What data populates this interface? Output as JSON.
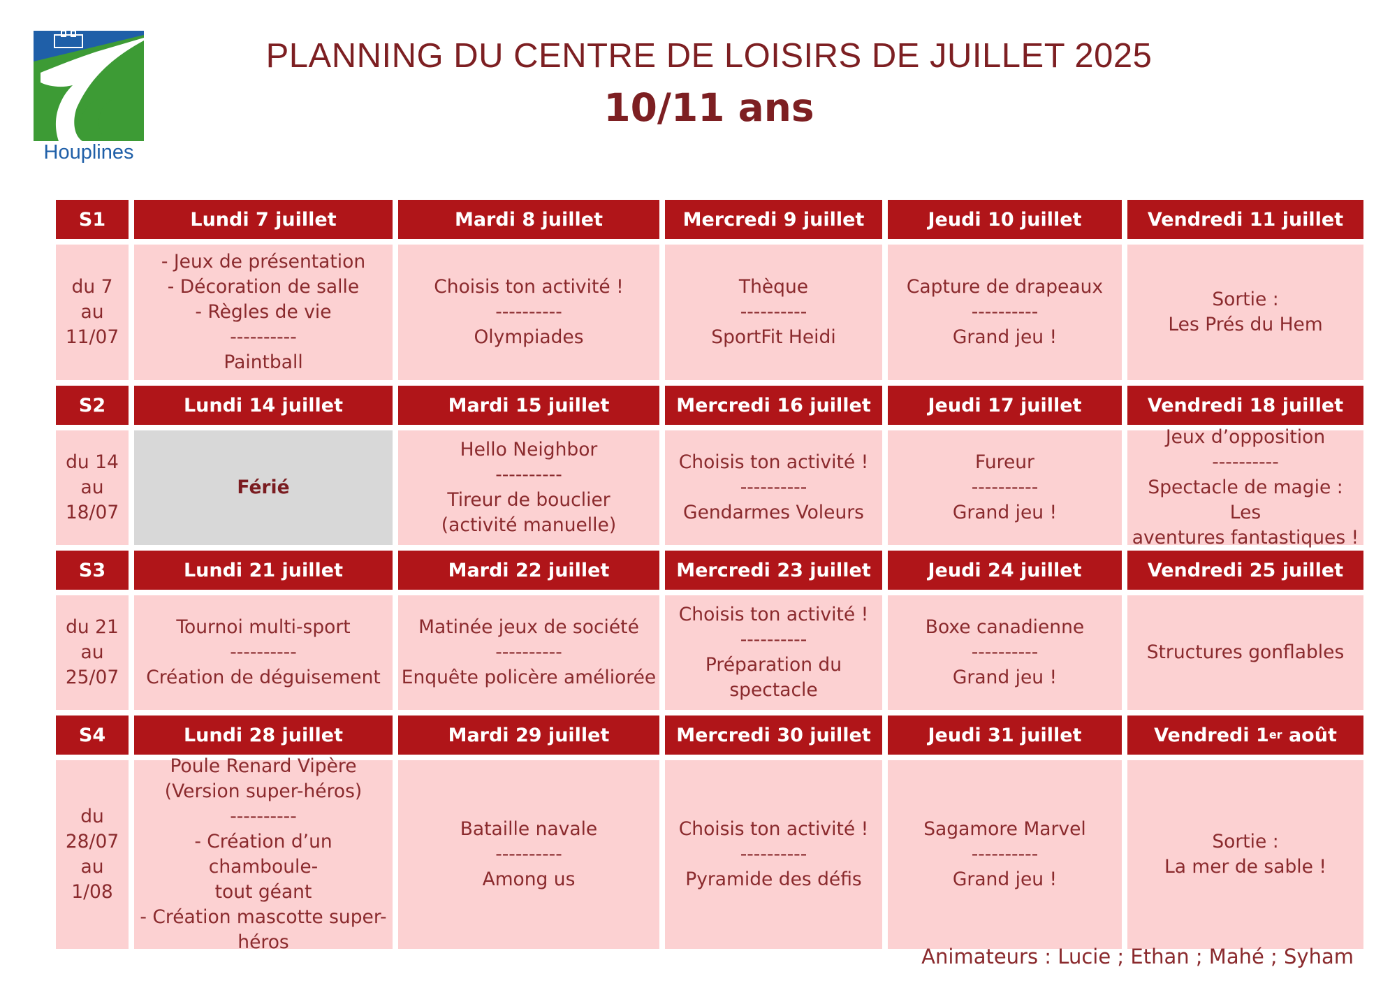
{
  "logo": {
    "name": "Houplines"
  },
  "header": {
    "title": "PLANNING DU CENTRE DE LOISIRS DE JUILLET 2025",
    "subtitle": "10/11 ans"
  },
  "weeks": [
    {
      "label": "S1",
      "range": [
        "du 7",
        "au",
        "11/07"
      ],
      "days": [
        {
          "name": "Lundi 7 juillet",
          "lines": [
            "- Jeux de présentation",
            "- Décoration de salle",
            "- Règles de vie",
            "----------",
            "Paintball"
          ]
        },
        {
          "name": "Mardi 8 juillet",
          "lines": [
            "Choisis ton activité !",
            "----------",
            "Olympiades"
          ]
        },
        {
          "name": "Mercredi 9 juillet",
          "lines": [
            "Thèque",
            "----------",
            "SportFit Heidi"
          ]
        },
        {
          "name": "Jeudi 10 juillet",
          "lines": [
            "Capture de drapeaux",
            "----------",
            "Grand jeu !"
          ]
        },
        {
          "name": "Vendredi 11 juillet",
          "lines": [
            "Sortie :",
            "Les Prés du Hem"
          ]
        }
      ]
    },
    {
      "label": "S2",
      "range": [
        "du 14",
        "au",
        "18/07"
      ],
      "days": [
        {
          "name": "Lundi 14 juillet",
          "lines": [
            "Férié"
          ]
        },
        {
          "name": "Mardi 15 juillet",
          "lines": [
            "Hello Neighbor",
            "----------",
            "Tireur de bouclier",
            "(activité manuelle)"
          ]
        },
        {
          "name": "Mercredi 16 juillet",
          "lines": [
            "Choisis ton activité !",
            "----------",
            "Gendarmes Voleurs"
          ]
        },
        {
          "name": "Jeudi 17 juillet",
          "lines": [
            "Fureur",
            "----------",
            "Grand jeu !"
          ]
        },
        {
          "name": "Vendredi 18 juillet",
          "lines": [
            "Jeux d’opposition",
            "----------",
            "Spectacle de magie : Les",
            "aventures fantastiques !"
          ]
        }
      ]
    },
    {
      "label": "S3",
      "range": [
        "du 21",
        "au",
        "25/07"
      ],
      "days": [
        {
          "name": "Lundi 21 juillet",
          "lines": [
            "Tournoi multi-sport",
            "----------",
            "Création de déguisement"
          ]
        },
        {
          "name": "Mardi 22 juillet",
          "lines": [
            "Matinée jeux de société",
            "----------",
            "Enquête policère améliorée"
          ]
        },
        {
          "name": "Mercredi 23 juillet",
          "lines": [
            "Choisis ton activité !",
            "----------",
            "Préparation du",
            "spectacle"
          ]
        },
        {
          "name": "Jeudi 24 juillet",
          "lines": [
            "Boxe canadienne",
            "----------",
            "Grand jeu !"
          ]
        },
        {
          "name": "Vendredi 25 juillet",
          "lines": [
            "Structures gonflables"
          ]
        }
      ]
    },
    {
      "label": "S4",
      "range": [
        "du",
        "28/07",
        "au",
        "1/08"
      ],
      "days": [
        {
          "name": "Lundi 28 juillet",
          "lines": [
            "Poule Renard Vipère",
            "(Version super-héros)",
            "----------",
            "- Création d’un chamboule-",
            "tout géant",
            "- Création mascotte super-",
            "héros"
          ]
        },
        {
          "name": "Mardi 29 juillet",
          "lines": [
            "Bataille navale",
            "----------",
            "Among us"
          ]
        },
        {
          "name": "Mercredi 30 juillet",
          "lines": [
            "Choisis ton activité !",
            "----------",
            "Pyramide des défis"
          ]
        },
        {
          "name": "Jeudi 31 juillet",
          "lines": [
            "Sagamore Marvel",
            "----------",
            "Grand jeu !"
          ]
        },
        {
          "name": "Vendredi 1er août",
          "name_parts": [
            "Vendredi 1",
            "er",
            " août"
          ],
          "lines": [
            "Sortie :",
            "La mer de sable !"
          ]
        }
      ]
    }
  ],
  "footer": {
    "animators": "Animateurs : Lucie ; Ethan ; Mahé ; Syham"
  }
}
